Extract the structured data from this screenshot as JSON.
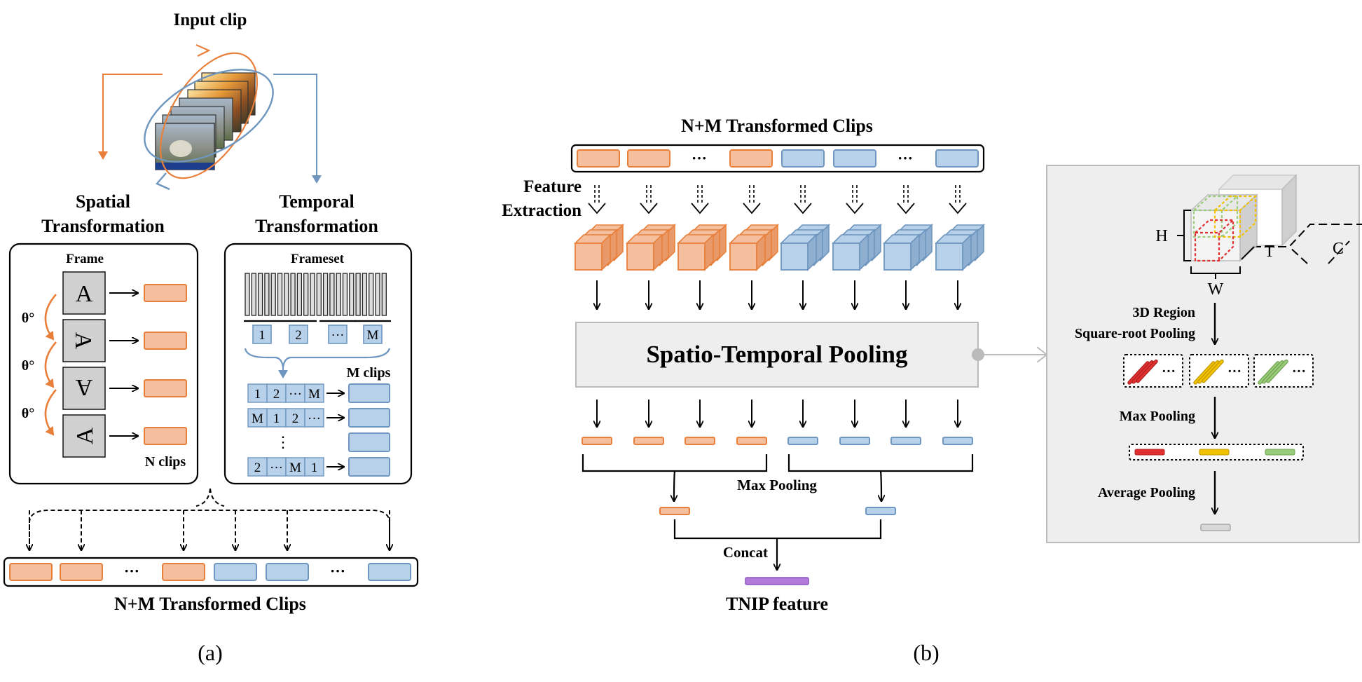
{
  "colors": {
    "orange_fill": "#F5BE9D",
    "orange_stroke": "#E8803C",
    "blue_fill": "#B8D1EA",
    "blue_stroke": "#6E96BE",
    "gray_panel": "#EEEEEE",
    "purple": "#B07AD8",
    "red": "#E03030",
    "yellow": "#F2C200",
    "green": "#9ACD7A"
  },
  "panel_a": {
    "input_clip_title": "Input clip",
    "spatial_title_line1": "Spatial",
    "spatial_title_line2": "Transformation",
    "temporal_title_line1": "Temporal",
    "temporal_title_line2": "Transformation",
    "frame_label": "Frame",
    "frame_letter": "A",
    "theta_label": "θ°",
    "n_clips_label": "N clips",
    "frameset_label": "Frameset",
    "segments": [
      "1",
      "2",
      "···",
      "M"
    ],
    "m_clips_label": "M clips",
    "shuffle_rows": [
      [
        "1",
        "2",
        "···",
        "M"
      ],
      [
        "M",
        "1",
        "2",
        "···"
      ],
      [
        "2",
        "···",
        "M",
        "1"
      ]
    ],
    "vertical_dots": "⋮",
    "bottom_dots": "···",
    "bottom_title": "N+M Transformed Clips",
    "caption": "(a)"
  },
  "panel_b": {
    "top_title": "N+M Transformed Clips",
    "dots": "···",
    "feature_extraction_line1": "Feature",
    "feature_extraction_line2": "Extraction",
    "stp_label": "Spatio-Temporal Pooling",
    "max_pooling_label": "Max Pooling",
    "concat_label": "Concat",
    "tnip_label": "TNIP feature",
    "caption": "(b)"
  },
  "detail": {
    "h_label": "H",
    "w_label": "W",
    "t_label": "T",
    "c_label": "C",
    "region_pooling_line1": "3D Region",
    "region_pooling_line2": "Square-root Pooling",
    "dots": "···",
    "max_pooling_label": "Max Pooling",
    "average_pooling_label": "Average Pooling"
  }
}
